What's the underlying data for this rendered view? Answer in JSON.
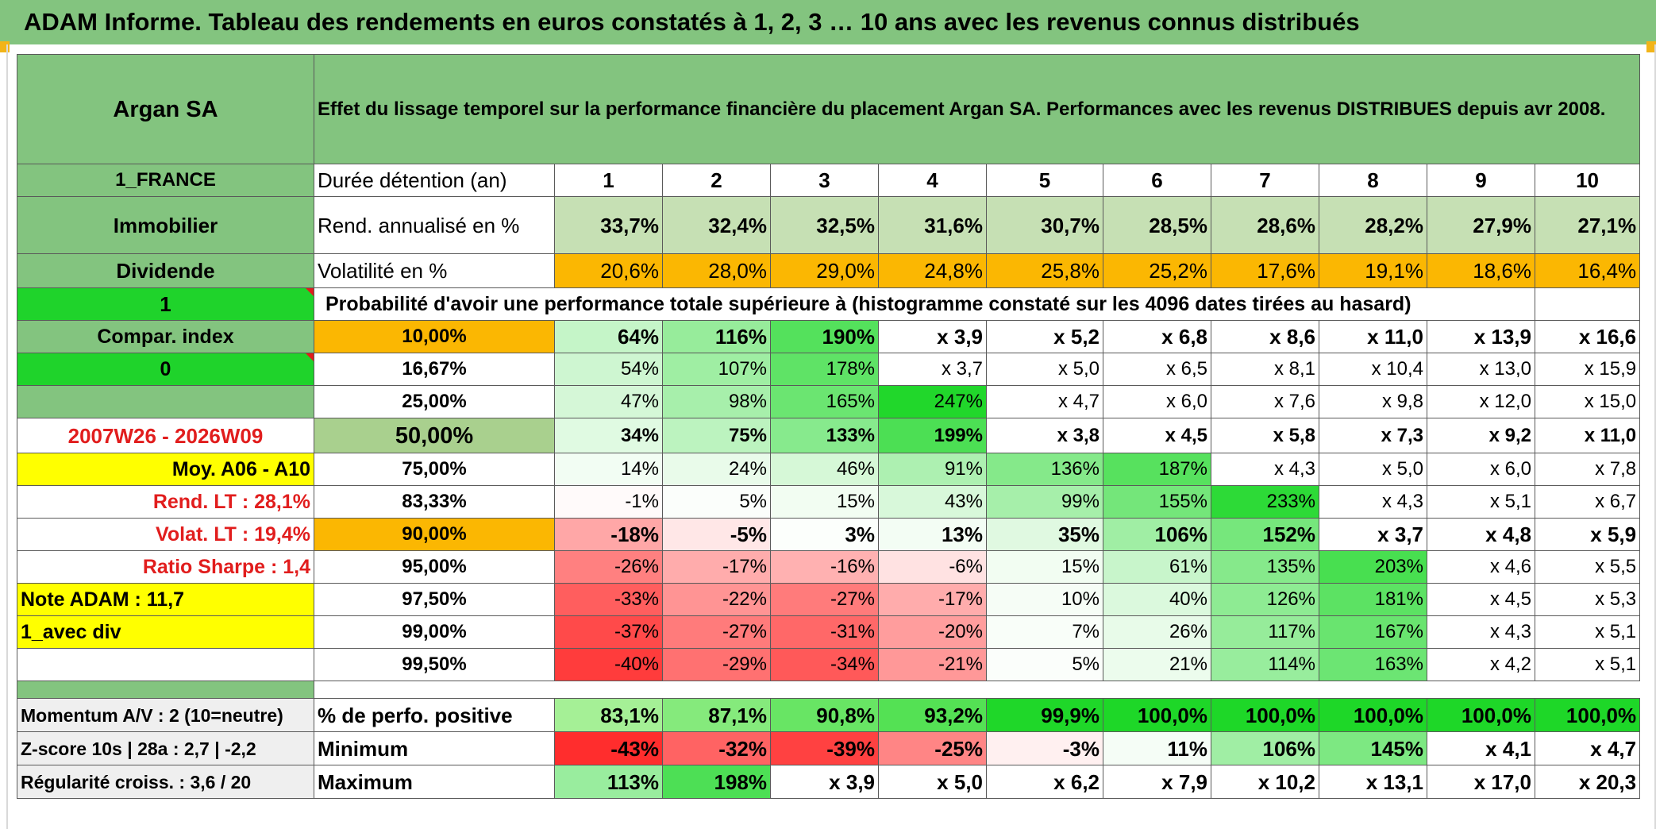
{
  "title": "ADAM Informe. Tableau des rendements en euros constatés à 1, 2, 3 … 10 ans avec les revenus connus distribués",
  "header": {
    "asset_name": "Argan SA",
    "description": "Effet du lissage temporel sur la performance financière du placement Argan SA. Performances avec les revenus DISTRIBUES depuis avr 2008."
  },
  "left_panel": {
    "country": "1_FRANCE",
    "sector": "Immobilier",
    "income_type": "Dividende",
    "flag_1": "1",
    "compare_label": "Compar. index",
    "flag_0": "0",
    "period": "2007W26 - 2026W09",
    "moy_label": "Moy. A06 - A10",
    "rend_lt": "Rend. LT :   28,1%",
    "volat_lt": "Volat. LT :   19,4%",
    "ratio_sharpe": "Ratio Sharpe :    1,4",
    "note_adam": "Note ADAM : 11,7",
    "avec_div": "1_avec div",
    "momentum": "Momentum A/V : 2 (10=neutre)",
    "zscore": "Z-score 10s | 28a : 2,7 | -2,2",
    "regularite": "Régularité croiss. : 3,6 / 20"
  },
  "table": {
    "duration_label": "Durée détention (an)",
    "years": [
      "1",
      "2",
      "3",
      "4",
      "5",
      "6",
      "7",
      "8",
      "9",
      "10"
    ],
    "rend_label": "Rend. annualisé en %",
    "rend": [
      "33,7%",
      "32,4%",
      "32,5%",
      "31,6%",
      "30,7%",
      "28,5%",
      "28,6%",
      "28,2%",
      "27,9%",
      "27,1%"
    ],
    "vol_label": "Volatilité en %",
    "vol": [
      "20,6%",
      "28,0%",
      "29,0%",
      "24,8%",
      "25,8%",
      "25,2%",
      "17,6%",
      "19,1%",
      "18,6%",
      "16,4%"
    ],
    "prob_label": "Probabilité d'avoir une performance totale supérieure à (histogramme constaté sur les 4096 dates tirées au hasard)",
    "prob_rows": [
      {
        "p": "10,00%",
        "v": [
          "64%",
          "116%",
          "190%",
          "x 3,9",
          "x 5,2",
          "x 6,8",
          "x 8,6",
          "x 11,0",
          "x 13,9",
          "x 16,6"
        ]
      },
      {
        "p": "16,67%",
        "v": [
          "54%",
          "107%",
          "178%",
          "x 3,7",
          "x 5,0",
          "x 6,5",
          "x 8,1",
          "x 10,4",
          "x 13,0",
          "x 15,9"
        ]
      },
      {
        "p": "25,00%",
        "v": [
          "47%",
          "98%",
          "165%",
          "247%",
          "x 4,7",
          "x 6,0",
          "x 7,6",
          "x 9,8",
          "x 12,0",
          "x 15,0"
        ]
      },
      {
        "p": "50,00%",
        "v": [
          "34%",
          "75%",
          "133%",
          "199%",
          "x 3,8",
          "x 4,5",
          "x 5,8",
          "x 7,3",
          "x 9,2",
          "x 11,0"
        ]
      },
      {
        "p": "75,00%",
        "v": [
          "14%",
          "24%",
          "46%",
          "91%",
          "136%",
          "187%",
          "x 4,3",
          "x 5,0",
          "x 6,0",
          "x 7,8"
        ]
      },
      {
        "p": "83,33%",
        "v": [
          "-1%",
          "5%",
          "15%",
          "43%",
          "99%",
          "155%",
          "233%",
          "x 4,3",
          "x 5,1",
          "x 6,7"
        ]
      },
      {
        "p": "90,00%",
        "v": [
          "-18%",
          "-5%",
          "3%",
          "13%",
          "35%",
          "106%",
          "152%",
          "x 3,7",
          "x 4,8",
          "x 5,9"
        ]
      },
      {
        "p": "95,00%",
        "v": [
          "-26%",
          "-17%",
          "-16%",
          "-6%",
          "15%",
          "61%",
          "135%",
          "203%",
          "x 4,6",
          "x 5,5"
        ]
      },
      {
        "p": "97,50%",
        "v": [
          "-33%",
          "-22%",
          "-27%",
          "-17%",
          "10%",
          "40%",
          "126%",
          "181%",
          "x 4,5",
          "x 5,3"
        ]
      },
      {
        "p": "99,00%",
        "v": [
          "-37%",
          "-27%",
          "-31%",
          "-20%",
          "7%",
          "26%",
          "117%",
          "167%",
          "x 4,3",
          "x 5,1"
        ]
      },
      {
        "p": "99,50%",
        "v": [
          "-40%",
          "-29%",
          "-34%",
          "-21%",
          "5%",
          "21%",
          "114%",
          "163%",
          "x 4,2",
          "x 5,1"
        ]
      }
    ],
    "pos_label": "% de perfo. positive",
    "pos": [
      "83,1%",
      "87,1%",
      "90,8%",
      "93,2%",
      "99,9%",
      "100,0%",
      "100,0%",
      "100,0%",
      "100,0%",
      "100,0%"
    ],
    "min_label": "Minimum",
    "min": [
      "-43%",
      "-32%",
      "-39%",
      "-25%",
      "-3%",
      "11%",
      "106%",
      "145%",
      "x 4,1",
      "x 4,7"
    ],
    "max_label": "Maximum",
    "max": [
      "113%",
      "198%",
      "x 3,9",
      "x 5,0",
      "x 6,2",
      "x 7,9",
      "x 10,2",
      "x 13,1",
      "x 17,0",
      "x 20,3"
    ]
  },
  "colors": {
    "header_green": "#83c47f",
    "bright_green": "#1fd32b",
    "orange": "#fbb702",
    "yellow": "#ffff00",
    "text_red": "#e11d1d"
  }
}
